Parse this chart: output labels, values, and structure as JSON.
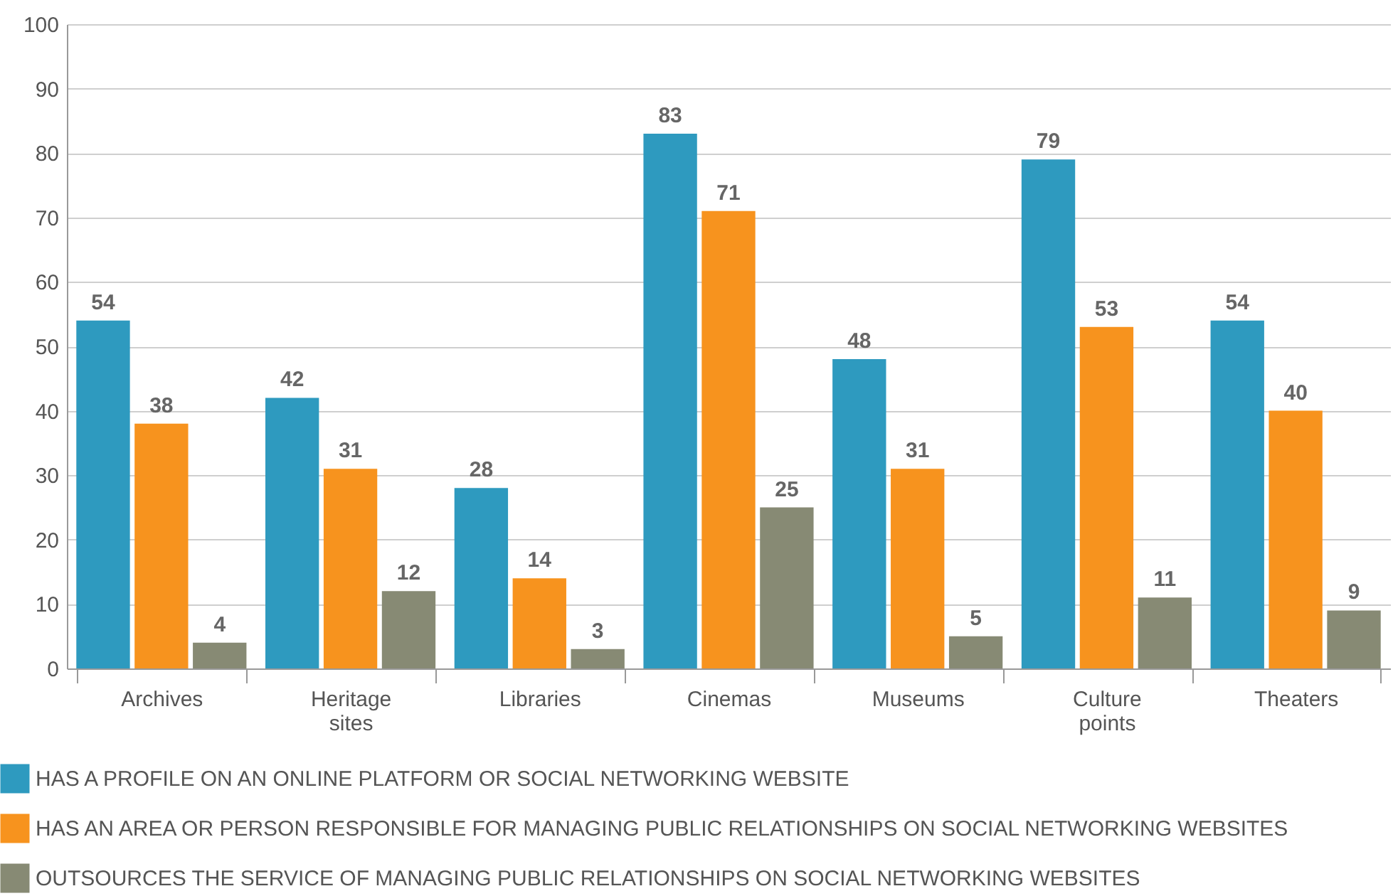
{
  "chart_data": {
    "type": "bar",
    "categories": [
      "Archives",
      "Heritage sites",
      "Libraries",
      "Cinemas",
      "Museums",
      "Culture points",
      "Theaters"
    ],
    "series": [
      {
        "name": "HAS A PROFILE ON AN ONLINE PLATFORM OR SOCIAL NETWORKING WEBSITE",
        "color": "#2e9abf",
        "values": [
          54,
          42,
          28,
          83,
          48,
          79,
          54
        ]
      },
      {
        "name": "HAS AN AREA OR PERSON RESPONSIBLE FOR MANAGING PUBLIC RELATIONSHIPS ON SOCIAL NETWORKING WEBSITES",
        "color": "#f7931e",
        "values": [
          38,
          31,
          14,
          71,
          31,
          53,
          40
        ]
      },
      {
        "name": "OUTSOURCES THE SERVICE OF MANAGING PUBLIC RELATIONSHIPS ON SOCIAL NETWORKING WEBSITES",
        "color": "#878a74",
        "values": [
          4,
          12,
          3,
          25,
          5,
          11,
          9
        ]
      }
    ],
    "ylim": [
      0,
      100
    ],
    "yticks": [
      0,
      10,
      20,
      30,
      40,
      50,
      60,
      70,
      80,
      90,
      100
    ],
    "grid": "y",
    "data_labels": true,
    "legend": "bottom left"
  }
}
